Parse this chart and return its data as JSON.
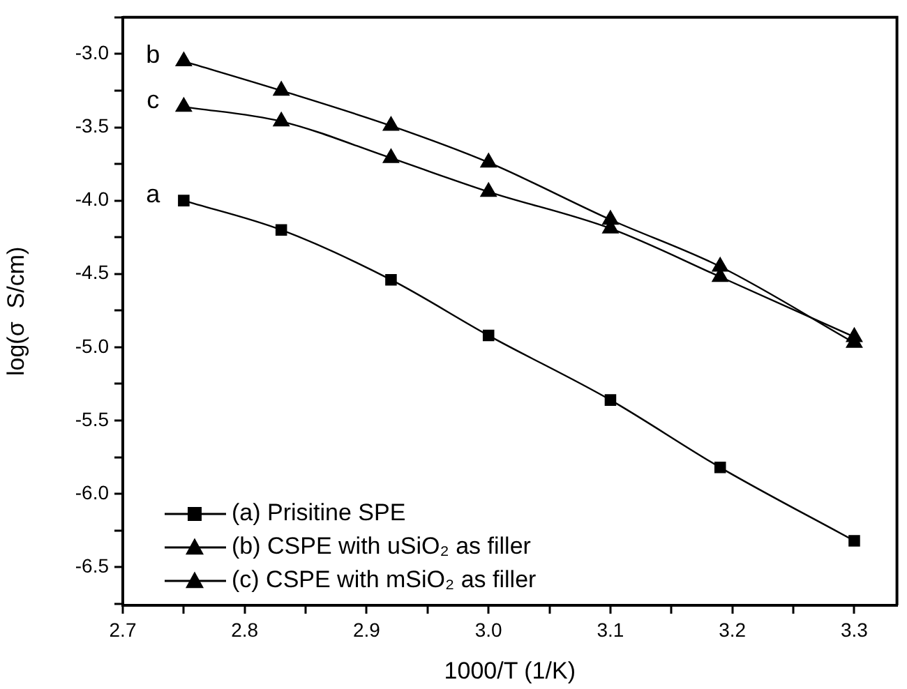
{
  "chart_data": {
    "type": "line",
    "xlabel": "1000/T (1/K)",
    "ylabel": "log(σ  S/cm)",
    "x": [
      2.75,
      2.83,
      2.92,
      3.0,
      3.1,
      3.19,
      3.3
    ],
    "series": [
      {
        "name": "(a) Prisitine SPE",
        "color": "#000000",
        "marker": "square",
        "values": [
          -4.0,
          -4.2,
          -4.54,
          -4.92,
          -5.36,
          -5.82,
          -6.32
        ]
      },
      {
        "name": "(b) CSPE with uSiO₂ as filler",
        "color": "#000000",
        "marker": "triangle",
        "values": [
          -3.05,
          -3.25,
          -3.49,
          -3.74,
          -4.13,
          -4.45,
          -4.97
        ]
      },
      {
        "name": "(c) CSPE with mSiO₂ as filler",
        "color": "#000000",
        "marker": "triangle",
        "values": [
          -3.36,
          -3.46,
          -3.71,
          -3.94,
          -4.19,
          -4.52,
          -4.93
        ]
      }
    ],
    "xlim": [
      2.7,
      3.335
    ],
    "xticks": [
      {
        "value": 2.7,
        "label": "2.7"
      },
      {
        "value": 2.75,
        "label": null
      },
      {
        "value": 2.8,
        "label": "2.8"
      },
      {
        "value": 2.85,
        "label": null
      },
      {
        "value": 2.9,
        "label": "2.9"
      },
      {
        "value": 2.95,
        "label": null
      },
      {
        "value": 3.0,
        "label": "3.0"
      },
      {
        "value": 3.05,
        "label": null
      },
      {
        "value": 3.1,
        "label": "3.1"
      },
      {
        "value": 3.15,
        "label": null
      },
      {
        "value": 3.2,
        "label": "3.2"
      },
      {
        "value": 3.25,
        "label": null
      },
      {
        "value": 3.3,
        "label": "3.3"
      }
    ],
    "ylim": [
      -6.76,
      -2.75
    ],
    "yticks": [
      {
        "value": -6.75,
        "label": null
      },
      {
        "value": -6.5,
        "label": "-6.5"
      },
      {
        "value": -6.25,
        "label": null
      },
      {
        "value": -6,
        "label": "-6.0"
      },
      {
        "value": -5.75,
        "label": null
      },
      {
        "value": -5.5,
        "label": "-5.5"
      },
      {
        "value": -5.25,
        "label": null
      },
      {
        "value": -5,
        "label": "-5.0"
      },
      {
        "value": -4.75,
        "label": null
      },
      {
        "value": -4.5,
        "label": "-4.5"
      },
      {
        "value": -4.25,
        "label": null
      },
      {
        "value": -4,
        "label": "-4.0"
      },
      {
        "value": -3.75,
        "label": null
      },
      {
        "value": -3.5,
        "label": "-3.5"
      },
      {
        "value": -3.25,
        "label": null
      },
      {
        "value": -3,
        "label": "-3.0"
      },
      {
        "value": -2.75,
        "label": null
      }
    ],
    "annotations": [
      "a",
      "b",
      "c"
    ],
    "grid": false,
    "legend": "bottom left",
    "line_style": "solid"
  }
}
